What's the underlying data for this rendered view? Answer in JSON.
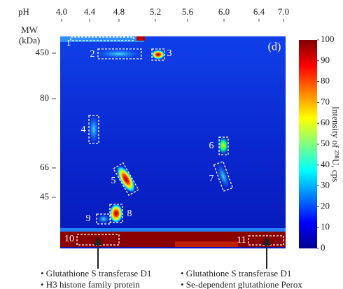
{
  "chart_data": {
    "type": "heatmap",
    "xlabel": "pH",
    "xticks": [
      {
        "value": 4.0,
        "label": "4.0"
      },
      {
        "value": 4.4,
        "label": "4.4"
      },
      {
        "value": 4.8,
        "label": "4.8"
      },
      {
        "value": 5.2,
        "label": "5.2"
      },
      {
        "value": 5.6,
        "label": "5.6"
      },
      {
        "value": 6.0,
        "label": "6.0"
      },
      {
        "value": 6.4,
        "label": "6.4"
      },
      {
        "value": 7.0,
        "label": "7.0"
      }
    ],
    "ylabel": "MW",
    "ylabel_unit": "(kDa)",
    "yticks": [
      450,
      80,
      66,
      45
    ],
    "panel_label": "(d)",
    "colormap": "jet",
    "zlim": [
      0,
      100
    ],
    "zticks": [
      0,
      10,
      20,
      30,
      40,
      50,
      60,
      70,
      80,
      90,
      100
    ],
    "colorbar_label": "Intensity of ²³⁸U, cps",
    "annotations": [
      "1",
      "2",
      "3",
      "4",
      "5",
      "6",
      "7",
      "8",
      "9",
      "10",
      "11"
    ],
    "legend": [
      [
        "• Glutathione S transferase D1",
        "• H3 histone family protein"
      ],
      [
        "• Glutathione S transferase D1",
        "• Se-dependent glutathione Perox"
      ]
    ]
  }
}
